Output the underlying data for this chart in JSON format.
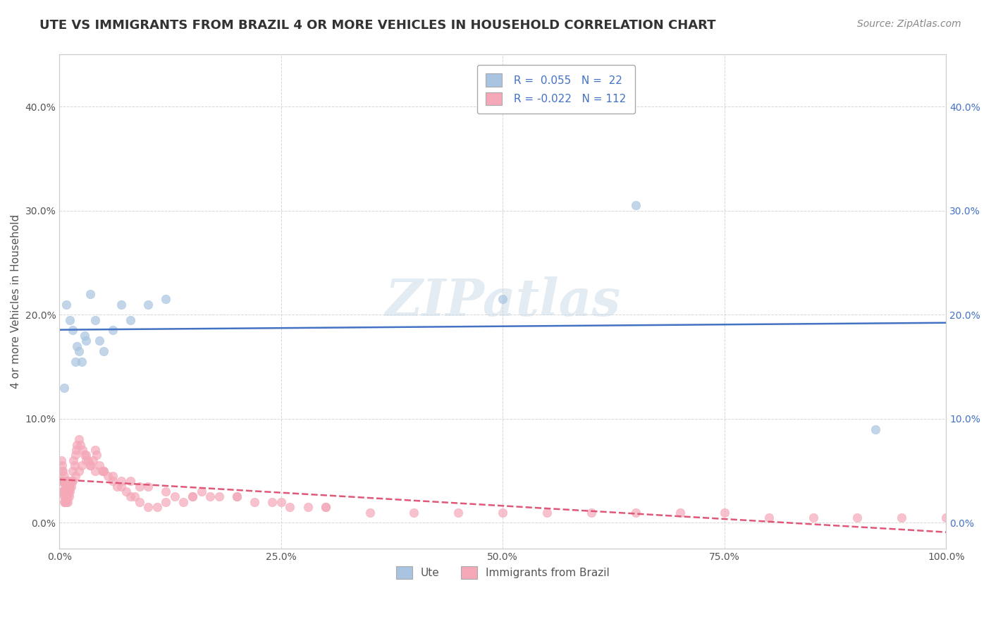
{
  "title": "UTE VS IMMIGRANTS FROM BRAZIL 4 OR MORE VEHICLES IN HOUSEHOLD CORRELATION CHART",
  "source": "Source: ZipAtlas.com",
  "ylabel": "4 or more Vehicles in Household",
  "ute_R": 0.055,
  "ute_N": 22,
  "brazil_R": -0.022,
  "brazil_N": 112,
  "ute_color": "#a8c4e0",
  "brazil_color": "#f4a8b8",
  "ute_line_color": "#4472c4",
  "brazil_line_color": "#e05878",
  "xlim": [
    0.0,
    1.0
  ],
  "ylim": [
    -0.025,
    0.45
  ],
  "xticks": [
    0.0,
    0.25,
    0.5,
    0.75,
    1.0
  ],
  "xtick_labels": [
    "0.0%",
    "25.0%",
    "50.0%",
    "75.0%",
    "100.0%"
  ],
  "yticks": [
    0.0,
    0.1,
    0.2,
    0.3,
    0.4
  ],
  "ytick_labels": [
    "0.0%",
    "10.0%",
    "20.0%",
    "30.0%",
    "40.0%"
  ],
  "ute_x": [
    0.005,
    0.008,
    0.012,
    0.015,
    0.018,
    0.02,
    0.022,
    0.025,
    0.028,
    0.03,
    0.035,
    0.04,
    0.045,
    0.05,
    0.06,
    0.07,
    0.08,
    0.1,
    0.12,
    0.5,
    0.65,
    0.92
  ],
  "ute_y": [
    0.13,
    0.21,
    0.195,
    0.185,
    0.155,
    0.17,
    0.165,
    0.155,
    0.18,
    0.175,
    0.22,
    0.195,
    0.175,
    0.165,
    0.185,
    0.21,
    0.195,
    0.21,
    0.215,
    0.215,
    0.305,
    0.09
  ],
  "brazil_x": [
    0.002,
    0.003,
    0.003,
    0.004,
    0.004,
    0.004,
    0.005,
    0.005,
    0.005,
    0.005,
    0.006,
    0.006,
    0.006,
    0.007,
    0.007,
    0.007,
    0.008,
    0.008,
    0.008,
    0.009,
    0.009,
    0.01,
    0.01,
    0.011,
    0.011,
    0.012,
    0.013,
    0.014,
    0.015,
    0.016,
    0.017,
    0.018,
    0.019,
    0.02,
    0.022,
    0.024,
    0.026,
    0.028,
    0.03,
    0.032,
    0.035,
    0.038,
    0.04,
    0.042,
    0.045,
    0.048,
    0.05,
    0.055,
    0.06,
    0.065,
    0.07,
    0.075,
    0.08,
    0.085,
    0.09,
    0.1,
    0.11,
    0.12,
    0.13,
    0.14,
    0.15,
    0.16,
    0.17,
    0.18,
    0.2,
    0.22,
    0.24,
    0.26,
    0.28,
    0.3,
    0.35,
    0.4,
    0.45,
    0.5,
    0.55,
    0.6,
    0.65,
    0.7,
    0.75,
    0.8,
    0.85,
    0.9,
    0.95,
    1.0,
    0.002,
    0.003,
    0.004,
    0.005,
    0.006,
    0.007,
    0.008,
    0.009,
    0.01,
    0.012,
    0.015,
    0.018,
    0.022,
    0.025,
    0.03,
    0.035,
    0.04,
    0.05,
    0.06,
    0.07,
    0.08,
    0.09,
    0.1,
    0.12,
    0.15,
    0.2,
    0.25,
    0.3
  ],
  "brazil_y": [
    0.04,
    0.05,
    0.04,
    0.03,
    0.03,
    0.04,
    0.02,
    0.025,
    0.03,
    0.04,
    0.02,
    0.025,
    0.035,
    0.02,
    0.03,
    0.04,
    0.02,
    0.025,
    0.03,
    0.02,
    0.025,
    0.03,
    0.04,
    0.025,
    0.035,
    0.03,
    0.035,
    0.04,
    0.05,
    0.06,
    0.055,
    0.065,
    0.07,
    0.075,
    0.08,
    0.075,
    0.07,
    0.065,
    0.065,
    0.06,
    0.055,
    0.06,
    0.07,
    0.065,
    0.055,
    0.05,
    0.05,
    0.045,
    0.04,
    0.035,
    0.035,
    0.03,
    0.025,
    0.025,
    0.02,
    0.015,
    0.015,
    0.02,
    0.025,
    0.02,
    0.025,
    0.03,
    0.025,
    0.025,
    0.025,
    0.02,
    0.02,
    0.015,
    0.015,
    0.015,
    0.01,
    0.01,
    0.01,
    0.01,
    0.01,
    0.01,
    0.01,
    0.01,
    0.01,
    0.005,
    0.005,
    0.005,
    0.005,
    0.005,
    0.06,
    0.055,
    0.05,
    0.045,
    0.04,
    0.04,
    0.035,
    0.035,
    0.03,
    0.035,
    0.04,
    0.045,
    0.05,
    0.055,
    0.06,
    0.055,
    0.05,
    0.05,
    0.045,
    0.04,
    0.04,
    0.035,
    0.035,
    0.03,
    0.025,
    0.025,
    0.02,
    0.015
  ],
  "background_color": "#ffffff",
  "grid_color": "#cccccc",
  "title_fontsize": 13,
  "axis_fontsize": 11,
  "tick_fontsize": 10,
  "source_fontsize": 10,
  "watermark_text": "ZIPatlas",
  "watermark_color": "#c8d8e8",
  "watermark_alpha": 0.5
}
